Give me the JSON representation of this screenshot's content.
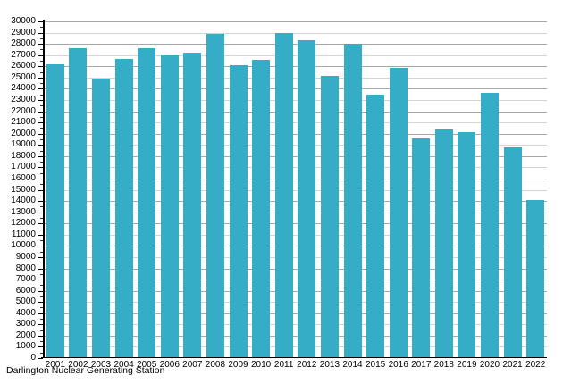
{
  "chart_data": {
    "type": "bar",
    "title": "",
    "caption": "Darlington Nuclear Generating Station",
    "categories": [
      "2001",
      "2002",
      "2003",
      "2004",
      "2005",
      "2006",
      "2007",
      "2008",
      "2009",
      "2010",
      "2011",
      "2012",
      "2013",
      "2014",
      "2015",
      "2016",
      "2017",
      "2018",
      "2019",
      "2020",
      "2021",
      "2022"
    ],
    "values": [
      26200,
      27650,
      24950,
      26650,
      27600,
      26950,
      27200,
      28900,
      26100,
      26600,
      29000,
      28300,
      25150,
      28050,
      23450,
      25900,
      19550,
      20350,
      20100,
      23600,
      18800,
      14100
    ],
    "xlabel": "",
    "ylabel": "",
    "ylim": [
      0,
      30000
    ],
    "ytick_step": 1000,
    "grid": true,
    "legend_position": "none",
    "bar_color": "#35adc7",
    "axis_color": "#000000",
    "gridline_major_color": "#a8a8a8",
    "gridline_minor_color": "#d4d4d4",
    "background_color": "#ffffff"
  }
}
